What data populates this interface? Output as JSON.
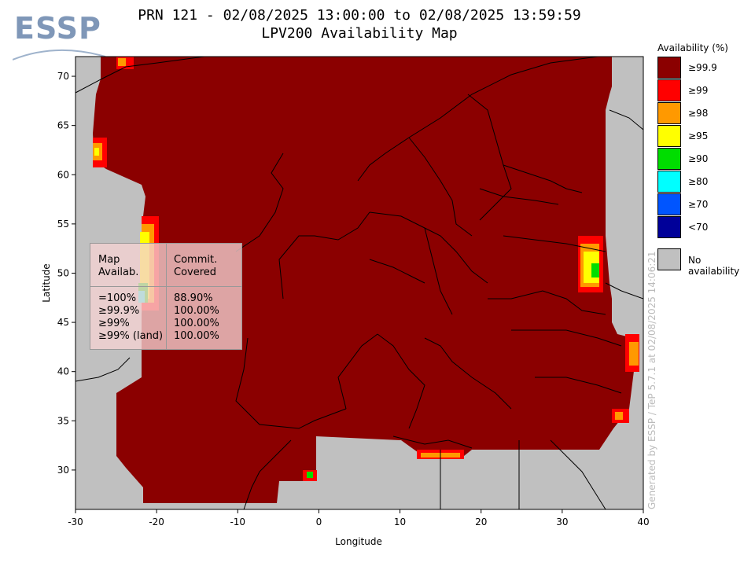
{
  "header": {
    "title_line1": "PRN 121 - 02/08/2025 13:00:00 to 02/08/2025 13:59:59",
    "title_line2": "LPV200 Availability Map"
  },
  "logo": {
    "text": "ESSP"
  },
  "axes": {
    "xlabel": "Longitude",
    "ylabel": "Latitude",
    "x_ticks": [
      "-30",
      "-20",
      "-10",
      "0",
      "10",
      "20",
      "30",
      "40"
    ],
    "y_ticks": [
      "30",
      "35",
      "40",
      "45",
      "50",
      "55",
      "60",
      "65",
      "70"
    ],
    "xlim": [
      -30,
      40
    ],
    "ylim": [
      26,
      72
    ]
  },
  "legend": {
    "title": "Availability (%)",
    "items": [
      {
        "label": "≥99.9",
        "color": "#8b0000"
      },
      {
        "label": "≥99",
        "color": "#ff0000"
      },
      {
        "label": "≥98",
        "color": "#ff9900"
      },
      {
        "label": "≥95",
        "color": "#ffff00"
      },
      {
        "label": "≥90",
        "color": "#00dd00"
      },
      {
        "label": "≥80",
        "color": "#00ffff"
      },
      {
        "label": "≥70",
        "color": "#0055ff"
      },
      {
        "label": "<70",
        "color": "#000099"
      }
    ],
    "no_availability": {
      "label": "No availability",
      "color": "#c0c0c0"
    }
  },
  "stats_table": {
    "col1_header": [
      "Map",
      "Availab."
    ],
    "col2_header": [
      "Commit.",
      "Covered"
    ],
    "rows": [
      {
        "label": "=100%",
        "value": "88.90%"
      },
      {
        "label": "≥99.9%",
        "value": "100.00%"
      },
      {
        "label": "≥99%",
        "value": "100.00%"
      },
      {
        "label": "≥99% (land)",
        "value": "100.00%"
      }
    ]
  },
  "watermark": "Generated by ESSP / TeP 5.7.1 at 02/08/2025 14:06:21",
  "colors": {
    "availability_high": "#8b0000",
    "no_availability": "#c0c0c0",
    "logo": "#7f97b8"
  }
}
